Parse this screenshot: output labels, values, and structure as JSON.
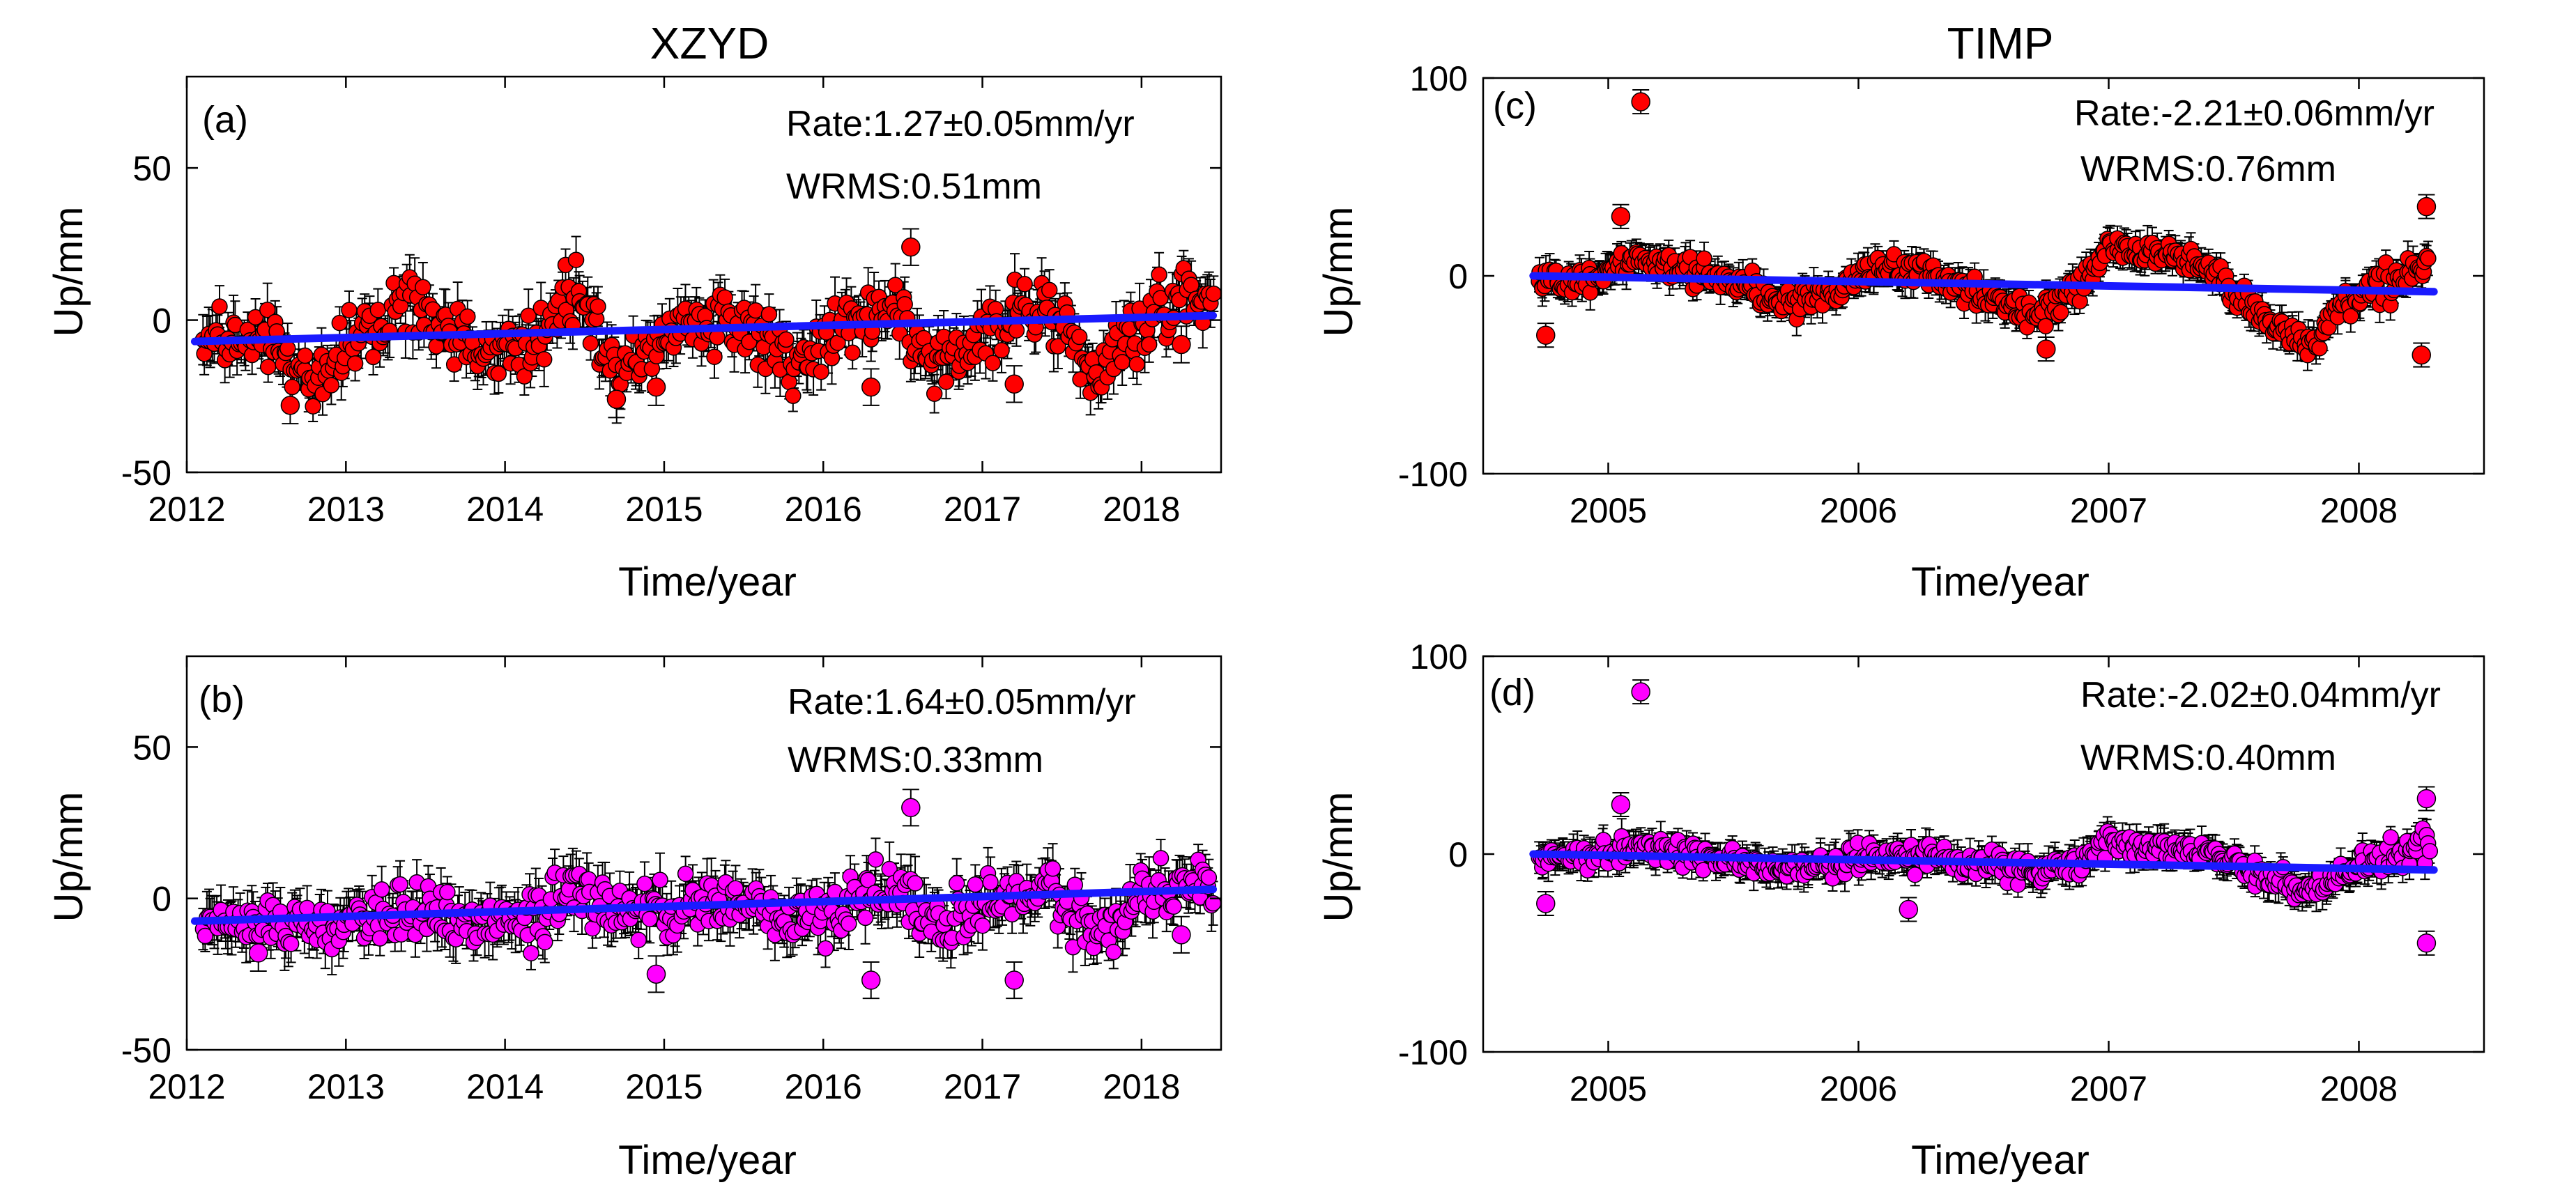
{
  "columns": [
    {
      "title": "XZYD"
    },
    {
      "title": "TIMP"
    }
  ],
  "colors": {
    "trend": "#1a1aff",
    "errorbar": "#000000",
    "red_points": "#ff0000",
    "magenta_points": "#ff00ff"
  },
  "chart_data": [
    {
      "type": "scatter",
      "panel": "(a)",
      "station": "XZYD",
      "xlabel": "Time/year",
      "ylabel": "Up/mm",
      "xlim": [
        2012,
        2018.5
      ],
      "ylim": [
        -50,
        80
      ],
      "xticks": [
        2012,
        2013,
        2014,
        2015,
        2016,
        2017,
        2018
      ],
      "yticks": [
        -50,
        0,
        50
      ],
      "point_color": "#ff0000",
      "rate_text": "Rate:1.27±0.05mm/yr",
      "wrms_text": "WRMS:0.51mm",
      "trend": {
        "x": [
          2012.05,
          2018.45
        ],
        "y": [
          -7,
          1.5
        ]
      },
      "series_envelope": {
        "x": [
          2012.1,
          2012.5,
          2012.8,
          2013.1,
          2013.4,
          2013.9,
          2014.2,
          2014.45,
          2014.7,
          2015.0,
          2015.3,
          2015.6,
          2015.8,
          2016.1,
          2016.4,
          2016.7,
          2016.9,
          2017.2,
          2017.4,
          2017.7,
          2018.0,
          2018.3,
          2018.45
        ],
        "center": [
          -5,
          -8,
          -20,
          -5,
          5,
          -12,
          -5,
          10,
          -15,
          -5,
          2,
          -5,
          -15,
          -3,
          5,
          -15,
          -8,
          2,
          5,
          -20,
          0,
          10,
          2
        ],
        "spread": [
          8,
          10,
          10,
          10,
          12,
          10,
          12,
          12,
          12,
          12,
          12,
          12,
          12,
          12,
          12,
          12,
          12,
          12,
          12,
          12,
          12,
          12,
          12
        ]
      },
      "outliers": [
        {
          "x": 2016.55,
          "y": 24
        },
        {
          "x": 2014.95,
          "y": -22
        },
        {
          "x": 2016.3,
          "y": -22
        },
        {
          "x": 2017.2,
          "y": -21
        },
        {
          "x": 2018.25,
          "y": -8
        },
        {
          "x": 2012.65,
          "y": -28
        },
        {
          "x": 2014.7,
          "y": -26
        }
      ]
    },
    {
      "type": "scatter",
      "panel": "(b)",
      "station": "XZYD",
      "xlabel": "Time/year",
      "ylabel": "Up/mm",
      "xlim": [
        2012,
        2018.5
      ],
      "ylim": [
        -50,
        80
      ],
      "xticks": [
        2012,
        2013,
        2014,
        2015,
        2016,
        2017,
        2018
      ],
      "yticks": [
        -50,
        0,
        50
      ],
      "point_color": "#ff00ff",
      "rate_text": "Rate:1.64±0.05mm/yr",
      "wrms_text": "WRMS:0.33mm",
      "trend": {
        "x": [
          2012.05,
          2018.45
        ],
        "y": [
          -7.5,
          3
        ]
      },
      "series_envelope": {
        "x": [
          2012.1,
          2012.5,
          2012.8,
          2013.1,
          2013.4,
          2013.9,
          2014.2,
          2014.45,
          2014.7,
          2015.0,
          2015.3,
          2015.6,
          2015.8,
          2016.1,
          2016.4,
          2016.7,
          2016.9,
          2017.2,
          2017.4,
          2017.7,
          2018.0,
          2018.3,
          2018.45
        ],
        "center": [
          -8,
          -8,
          -10,
          -8,
          -3,
          -8,
          -8,
          5,
          -5,
          -5,
          0,
          -3,
          -8,
          -2,
          3,
          -8,
          -5,
          0,
          3,
          -10,
          0,
          5,
          5
        ],
        "spread": [
          6,
          8,
          8,
          8,
          10,
          8,
          10,
          10,
          10,
          10,
          10,
          10,
          10,
          10,
          10,
          10,
          10,
          10,
          10,
          10,
          10,
          10,
          10
        ]
      },
      "outliers": [
        {
          "x": 2016.55,
          "y": 30
        },
        {
          "x": 2014.95,
          "y": -25
        },
        {
          "x": 2016.3,
          "y": -27
        },
        {
          "x": 2017.2,
          "y": -27
        },
        {
          "x": 2018.25,
          "y": -12
        },
        {
          "x": 2012.45,
          "y": -18
        }
      ]
    },
    {
      "type": "scatter",
      "panel": "(c)",
      "station": "TIMP",
      "xlabel": "Time/year",
      "ylabel": "Up/mm",
      "xlim": [
        2004.5,
        2008.5
      ],
      "ylim": [
        -100,
        100
      ],
      "xticks": [
        2005,
        2006,
        2007,
        2008
      ],
      "yticks": [
        -100,
        0,
        100
      ],
      "point_color": "#ff0000",
      "rate_text": "Rate:-2.21±0.06mm/yr",
      "wrms_text": "WRMS:0.76mm",
      "trend": {
        "x": [
          2004.7,
          2008.3
        ],
        "y": [
          0,
          -8
        ]
      },
      "series_envelope": {
        "x": [
          2004.72,
          2004.9,
          2005.1,
          2005.3,
          2005.5,
          2005.7,
          2005.9,
          2006.1,
          2006.3,
          2006.5,
          2006.7,
          2006.9,
          2007.0,
          2007.2,
          2007.4,
          2007.6,
          2007.8,
          2008.0,
          2008.2,
          2008.28
        ],
        "center": [
          -5,
          -2,
          8,
          3,
          -2,
          -15,
          -8,
          5,
          0,
          -10,
          -20,
          -5,
          15,
          10,
          5,
          -20,
          -35,
          -10,
          0,
          10
        ],
        "spread": [
          6,
          8,
          8,
          8,
          8,
          8,
          8,
          8,
          8,
          8,
          8,
          8,
          8,
          8,
          8,
          8,
          8,
          8,
          10,
          10
        ]
      },
      "outliers": [
        {
          "x": 2005.13,
          "y": 88
        },
        {
          "x": 2005.05,
          "y": 30
        },
        {
          "x": 2004.75,
          "y": -30
        },
        {
          "x": 2008.27,
          "y": 35
        },
        {
          "x": 2008.25,
          "y": -40
        },
        {
          "x": 2006.75,
          "y": -37
        }
      ]
    },
    {
      "type": "scatter",
      "panel": "(d)",
      "station": "TIMP",
      "xlabel": "Time/year",
      "ylabel": "Up/mm",
      "xlim": [
        2004.5,
        2008.5
      ],
      "ylim": [
        -100,
        100
      ],
      "xticks": [
        2005,
        2006,
        2007,
        2008
      ],
      "yticks": [
        -100,
        0,
        100
      ],
      "point_color": "#ff00ff",
      "rate_text": "Rate:-2.02±0.04mm/yr",
      "wrms_text": "WRMS:0.40mm",
      "trend": {
        "x": [
          2004.7,
          2008.3
        ],
        "y": [
          0,
          -8
        ]
      },
      "series_envelope": {
        "x": [
          2004.72,
          2004.9,
          2005.1,
          2005.3,
          2005.5,
          2005.7,
          2005.9,
          2006.1,
          2006.3,
          2006.5,
          2006.7,
          2006.9,
          2007.0,
          2007.2,
          2007.4,
          2007.6,
          2007.8,
          2008.0,
          2008.2,
          2008.28
        ],
        "center": [
          -3,
          -2,
          3,
          0,
          -3,
          -8,
          -5,
          0,
          -3,
          -5,
          -10,
          -3,
          5,
          3,
          0,
          -10,
          -20,
          -5,
          0,
          5
        ],
        "spread": [
          6,
          7,
          7,
          7,
          7,
          7,
          7,
          7,
          7,
          7,
          7,
          7,
          7,
          7,
          7,
          7,
          7,
          7,
          9,
          9
        ]
      },
      "outliers": [
        {
          "x": 2005.13,
          "y": 82
        },
        {
          "x": 2005.05,
          "y": 25
        },
        {
          "x": 2004.75,
          "y": -25
        },
        {
          "x": 2008.27,
          "y": 28
        },
        {
          "x": 2008.27,
          "y": -45
        },
        {
          "x": 2006.2,
          "y": -28
        }
      ]
    }
  ]
}
